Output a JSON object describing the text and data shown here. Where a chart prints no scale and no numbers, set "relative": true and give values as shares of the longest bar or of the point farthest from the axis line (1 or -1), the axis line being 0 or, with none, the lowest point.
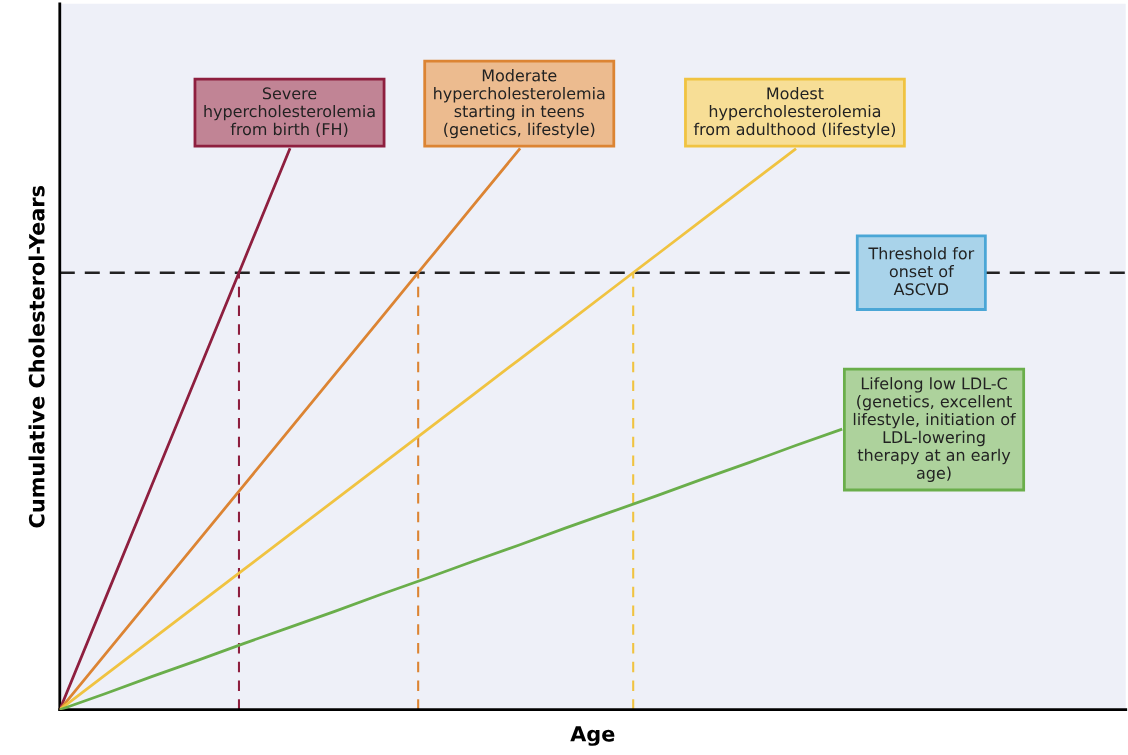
{
  "chart_data": {
    "type": "line",
    "relative": true,
    "xlabel": "Age",
    "ylabel": "Cumulative Cholesterol-Years",
    "line_style": "solid",
    "marker": "none",
    "grid": false,
    "legend": false,
    "categories": [
      null,
      null,
      null,
      null,
      null,
      null,
      null,
      null,
      null,
      null,
      null,
      null,
      null,
      null,
      null,
      null,
      null,
      null,
      null,
      null,
      null,
      null,
      null,
      null
    ],
    "series": [
      {
        "name": "Severe\nhypercholesterolemia\nfrom birth (FH)",
        "color": "#8e1f3f",
        "values": [
          0,
          0.2,
          0.4,
          0.6,
          0.8,
          1.0,
          null,
          null,
          null,
          null,
          null,
          null,
          null,
          null,
          null,
          null,
          null,
          null,
          null,
          null,
          null,
          null,
          null,
          null
        ]
      },
      {
        "name": "Moderate\nhypercholesterolemia\nstarting in teens\n(genetics, lifestyle)",
        "color": "#dc8433",
        "values": [
          0,
          0.1,
          0.2,
          0.3,
          0.4,
          0.5,
          0.6,
          0.7,
          0.8,
          0.9,
          1.0,
          null,
          null,
          null,
          null,
          null,
          null,
          null,
          null,
          null,
          null,
          null,
          null,
          null
        ]
      },
      {
        "name": "Modest\nhypercholesterolemia\nfrom adulthood (lifestyle)",
        "color": "#f0c341",
        "values": [
          0,
          0.0625,
          0.125,
          0.1875,
          0.25,
          0.3125,
          0.375,
          0.4375,
          0.5,
          0.5625,
          0.625,
          0.6875,
          0.75,
          0.8125,
          0.875,
          0.9375,
          1.0,
          null,
          null,
          null,
          null,
          null,
          null,
          null
        ]
      },
      {
        "name": "Lifelong low LDL-C\n(genetics, excellent\nlifestyle, initiation of\nLDL-lowering\ntherapy at an early\nage)",
        "color": "#6aae4b",
        "values": [
          0,
          0.029,
          0.059,
          0.088,
          0.118,
          0.147,
          0.176,
          0.206,
          0.235,
          0.265,
          0.294,
          0.324,
          0.353,
          0.382,
          0.412,
          0.441,
          0.471,
          0.5,
          null,
          null,
          null,
          null,
          null,
          null
        ]
      }
    ],
    "ref_lines": [
      {
        "axis": "y",
        "value": 0.78,
        "label": "Threshold for\nonset of\nASCVD",
        "color": "#222222",
        "line_style": "dashed"
      }
    ]
  }
}
